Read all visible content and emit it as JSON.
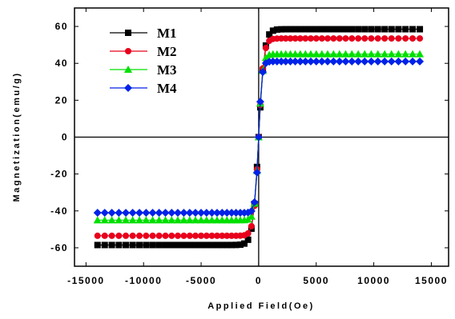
{
  "chart_data": {
    "type": "line",
    "xlabel": "Applied Field(Oe)",
    "ylabel": "Magnetization(emu/g)",
    "xlim": [
      -16000,
      16500
    ],
    "ylim": [
      -70,
      70
    ],
    "xticks": [
      -15000,
      -10000,
      -5000,
      0,
      5000,
      10000,
      15000
    ],
    "xtick_labels": [
      "-15000",
      "-10000",
      "-5000",
      "0",
      "5000",
      "10000",
      "15000"
    ],
    "yticks": [
      -60,
      -40,
      -20,
      0,
      20,
      40,
      60
    ],
    "ytick_labels": [
      "-60",
      "-40",
      "-20",
      "0",
      "20",
      "40",
      "60"
    ],
    "legend_position": "top-left",
    "grid": false,
    "x_range_measured": [
      -14000,
      14000
    ],
    "series": [
      {
        "name": "M1",
        "color": "#000000",
        "marker": "square",
        "saturation": 58.5,
        "field_scale": 500
      },
      {
        "name": "M2",
        "color": "#e8001c",
        "marker": "circle",
        "saturation": 53.5,
        "field_scale": 420
      },
      {
        "name": "M3",
        "color": "#00e000",
        "marker": "triangle",
        "saturation": 45,
        "field_scale": 330
      },
      {
        "name": "M4",
        "color": "#0022e8",
        "marker": "diamond",
        "saturation": 41,
        "field_scale": 280
      }
    ]
  }
}
